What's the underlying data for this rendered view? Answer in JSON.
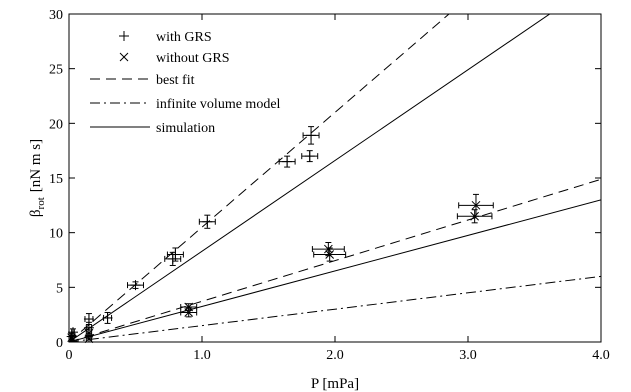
{
  "chart_data": {
    "type": "scatter",
    "xlabel": "P [mPa]",
    "ylabel_main": "β",
    "ylabel_sub": "rot",
    "ylabel_unit": "[nN m s]",
    "xlim": [
      0,
      4.0
    ],
    "ylim": [
      0,
      30
    ],
    "x_ticks": [
      0,
      1.0,
      2.0,
      3.0,
      4.0
    ],
    "x_tick_labels": [
      "0",
      "1.0",
      "2.0",
      "3.0",
      "4.0"
    ],
    "y_ticks": [
      0,
      5,
      10,
      15,
      20,
      25,
      30
    ],
    "y_tick_labels": [
      "0",
      "5",
      "10",
      "15",
      "20",
      "25",
      "30"
    ],
    "grid": false,
    "legend_position": "top-left",
    "legend": [
      {
        "label": "with GRS",
        "style": "plus-marker"
      },
      {
        "label": "without GRS",
        "style": "x-marker"
      },
      {
        "label": "best fit",
        "style": "dashed"
      },
      {
        "label": "infinite volume model",
        "style": "dash-dot"
      },
      {
        "label": "simulation",
        "style": "solid"
      }
    ],
    "series": [
      {
        "name": "with GRS",
        "marker": "plus",
        "points": [
          {
            "x": 0.02,
            "y": 0.5,
            "xerr": 0.01,
            "yerr": 0.3
          },
          {
            "x": 0.03,
            "y": 0.9,
            "xerr": 0.01,
            "yerr": 0.3
          },
          {
            "x": 0.15,
            "y": 1.3,
            "xerr": 0.02,
            "yerr": 0.5
          },
          {
            "x": 0.15,
            "y": 2.1,
            "xerr": 0.03,
            "yerr": 0.5
          },
          {
            "x": 0.29,
            "y": 2.2,
            "xerr": 0.03,
            "yerr": 0.5
          },
          {
            "x": 0.5,
            "y": 5.2,
            "xerr": 0.06,
            "yerr": 0.3
          },
          {
            "x": 0.78,
            "y": 7.6,
            "xerr": 0.06,
            "yerr": 0.6
          },
          {
            "x": 0.8,
            "y": 8.0,
            "xerr": 0.06,
            "yerr": 0.6
          },
          {
            "x": 1.04,
            "y": 11.0,
            "xerr": 0.06,
            "yerr": 0.6
          },
          {
            "x": 1.64,
            "y": 16.5,
            "xerr": 0.06,
            "yerr": 0.5
          },
          {
            "x": 1.81,
            "y": 17.0,
            "xerr": 0.06,
            "yerr": 0.5
          },
          {
            "x": 1.82,
            "y": 18.9,
            "xerr": 0.06,
            "yerr": 0.8
          }
        ]
      },
      {
        "name": "without GRS",
        "marker": "x",
        "points": [
          {
            "x": 0.02,
            "y": 0.4,
            "xerr": 0.01,
            "yerr": 0.2
          },
          {
            "x": 0.15,
            "y": 0.3,
            "xerr": 0.02,
            "yerr": 0.3
          },
          {
            "x": 0.15,
            "y": 0.8,
            "xerr": 0.02,
            "yerr": 0.3
          },
          {
            "x": 0.9,
            "y": 2.7,
            "xerr": 0.06,
            "yerr": 0.4
          },
          {
            "x": 0.9,
            "y": 3.2,
            "xerr": 0.06,
            "yerr": 0.3
          },
          {
            "x": 1.96,
            "y": 8.0,
            "xerr": 0.12,
            "yerr": 0.6
          },
          {
            "x": 1.95,
            "y": 8.5,
            "xerr": 0.12,
            "yerr": 0.6
          },
          {
            "x": 3.05,
            "y": 11.5,
            "xerr": 0.13,
            "yerr": 0.6
          },
          {
            "x": 3.06,
            "y": 12.5,
            "xerr": 0.13,
            "yerr": 1.0
          }
        ]
      }
    ],
    "lines": [
      {
        "label": "best fit",
        "style": "dashed",
        "slope": 10.5
      },
      {
        "label": "simulation",
        "style": "solid",
        "slope": 8.3
      },
      {
        "label": "best fit",
        "style": "dashed",
        "slope": 3.72
      },
      {
        "label": "simulation",
        "style": "solid",
        "slope": 3.25
      },
      {
        "label": "infinite volume model",
        "style": "dash-dot",
        "slope": 1.5
      }
    ]
  }
}
